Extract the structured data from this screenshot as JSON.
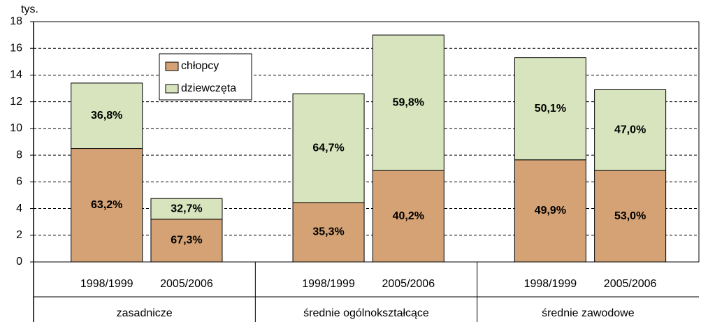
{
  "chart_data": {
    "type": "stacked_bar",
    "y_label": "tys.",
    "groups": [
      {
        "label": "zasadnicze",
        "categories": [
          "1998/1999",
          "2005/2006"
        ]
      },
      {
        "label": "średnie ogólnokształcące",
        "categories": [
          "1998/1999",
          "2005/2006"
        ]
      },
      {
        "label": "średnie zawodowe",
        "categories": [
          "1998/1999",
          "2005/2006"
        ]
      }
    ],
    "series": [
      {
        "name": "chłopcy",
        "color": "#d4a274",
        "values": [
          8.5,
          3.2,
          4.45,
          6.85,
          7.65,
          6.85
        ],
        "percent_labels": [
          "63,2%",
          "67,3%",
          "35,3%",
          "40,2%",
          "49,9%",
          "53,0%"
        ]
      },
      {
        "name": "dziewczęta",
        "color": "#d7e4bd",
        "values": [
          4.9,
          1.55,
          8.15,
          10.15,
          7.65,
          6.05
        ],
        "percent_labels": [
          "36,8%",
          "32,7%",
          "64,7%",
          "59,8%",
          "50,1%",
          "47,0%"
        ]
      }
    ],
    "ylim": [
      0,
      18
    ],
    "yticks": [
      0,
      2,
      4,
      6,
      8,
      10,
      12,
      14,
      16,
      18
    ],
    "grid": true
  }
}
